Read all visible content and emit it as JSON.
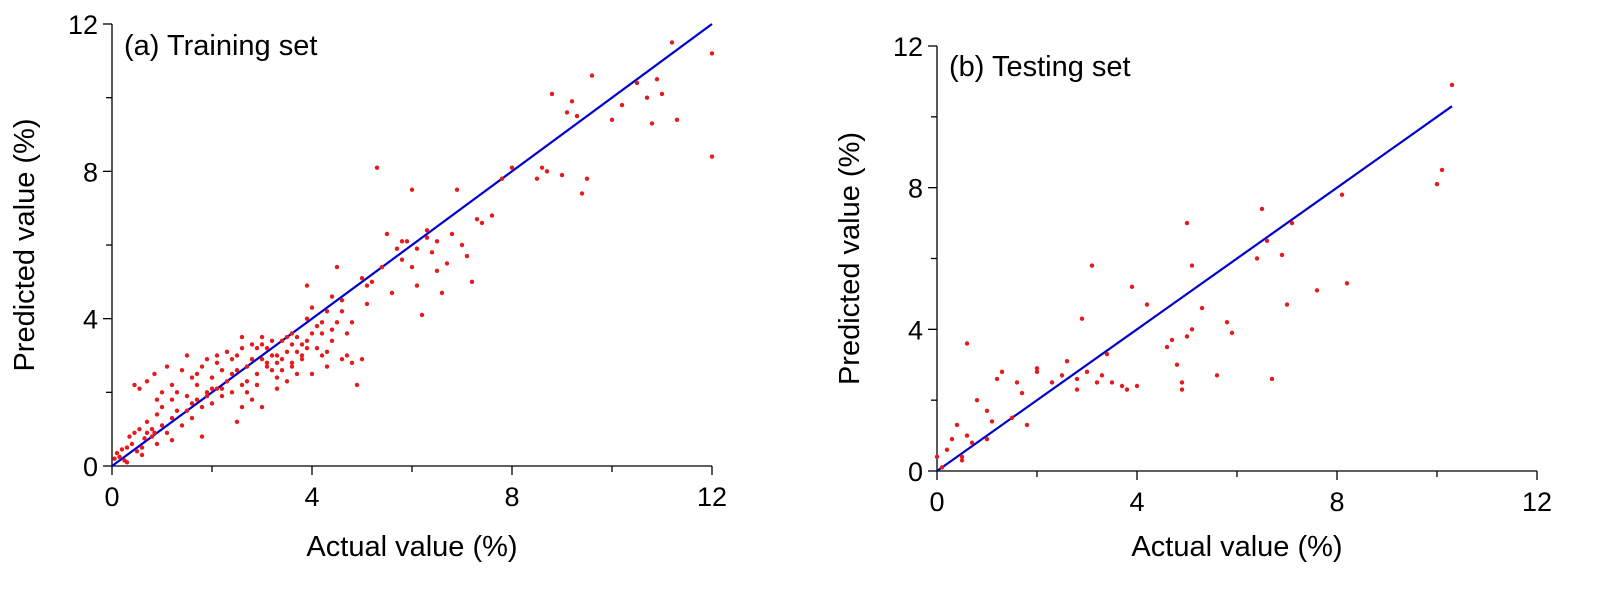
{
  "chart_data": [
    {
      "type": "scatter",
      "title": "(a) Training set",
      "xlabel": "Actual value (%)",
      "ylabel": "Predicted value (%)",
      "xlim": [
        0,
        12
      ],
      "ylim": [
        0,
        12
      ],
      "xticks": [
        "0",
        "4",
        "8",
        "12"
      ],
      "yticks": [
        "0",
        "4",
        "8",
        "12"
      ],
      "marker_color": "#e41a1c",
      "line_color": "#0000cc",
      "fit_line": {
        "x": [
          0,
          12
        ],
        "y": [
          0,
          12
        ]
      },
      "points": [
        [
          0.05,
          0.2
        ],
        [
          0.1,
          0.35
        ],
        [
          0.15,
          0.25
        ],
        [
          0.2,
          0.45
        ],
        [
          0.25,
          0.15
        ],
        [
          0.3,
          0.5
        ],
        [
          0.35,
          0.8
        ],
        [
          0.4,
          0.6
        ],
        [
          0.45,
          0.9
        ],
        [
          0.5,
          0.4
        ],
        [
          0.55,
          1.0
        ],
        [
          0.6,
          0.5
        ],
        [
          0.65,
          0.75
        ],
        [
          0.7,
          1.2
        ],
        [
          0.8,
          1.0
        ],
        [
          0.85,
          0.9
        ],
        [
          0.9,
          1.4
        ],
        [
          1.0,
          1.1
        ],
        [
          1.1,
          0.9
        ],
        [
          1.2,
          1.3
        ],
        [
          0.45,
          2.2
        ],
        [
          0.55,
          2.1
        ],
        [
          0.7,
          2.3
        ],
        [
          0.85,
          2.5
        ],
        [
          0.9,
          1.8
        ],
        [
          1.0,
          2.0
        ],
        [
          1.1,
          2.7
        ],
        [
          1.2,
          2.2
        ],
        [
          1.3,
          2.0
        ],
        [
          1.4,
          2.6
        ],
        [
          1.5,
          3.0
        ],
        [
          1.6,
          2.4
        ],
        [
          1.7,
          2.2
        ],
        [
          1.8,
          2.7
        ],
        [
          1.9,
          2.0
        ],
        [
          2.0,
          2.4
        ],
        [
          2.1,
          2.8
        ],
        [
          2.2,
          2.1
        ],
        [
          2.3,
          3.1
        ],
        [
          2.4,
          2.5
        ],
        [
          1.5,
          1.5
        ],
        [
          1.6,
          1.3
        ],
        [
          1.7,
          1.8
        ],
        [
          1.8,
          1.6
        ],
        [
          1.9,
          1.9
        ],
        [
          2.0,
          1.7
        ],
        [
          2.1,
          2.1
        ],
        [
          2.2,
          1.9
        ],
        [
          1.8,
          0.8
        ],
        [
          1.4,
          1.1
        ],
        [
          2.5,
          2.6
        ],
        [
          2.6,
          3.2
        ],
        [
          2.7,
          2.3
        ],
        [
          2.8,
          2.9
        ],
        [
          2.9,
          2.5
        ],
        [
          3.0,
          3.3
        ],
        [
          3.1,
          2.7
        ],
        [
          3.2,
          3.0
        ],
        [
          3.3,
          2.4
        ],
        [
          3.4,
          3.4
        ],
        [
          2.5,
          1.2
        ],
        [
          2.6,
          1.6
        ],
        [
          2.7,
          2.0
        ],
        [
          2.8,
          1.8
        ],
        [
          2.9,
          2.2
        ],
        [
          3.0,
          1.6
        ],
        [
          3.1,
          2.8
        ],
        [
          3.2,
          2.6
        ],
        [
          3.3,
          2.1
        ],
        [
          3.4,
          2.9
        ],
        [
          3.5,
          3.1
        ],
        [
          3.6,
          2.7
        ],
        [
          3.7,
          3.5
        ],
        [
          3.8,
          2.9
        ],
        [
          3.9,
          3.2
        ],
        [
          4.0,
          2.5
        ],
        [
          4.1,
          3.8
        ],
        [
          4.2,
          3.0
        ],
        [
          4.3,
          4.2
        ],
        [
          4.4,
          3.4
        ],
        [
          3.5,
          2.3
        ],
        [
          3.6,
          3.6
        ],
        [
          3.7,
          2.5
        ],
        [
          3.8,
          3.0
        ],
        [
          3.9,
          4.0
        ],
        [
          4.0,
          4.3
        ],
        [
          4.1,
          3.2
        ],
        [
          4.2,
          3.6
        ],
        [
          4.3,
          2.7
        ],
        [
          4.4,
          4.6
        ],
        [
          4.5,
          3.9
        ],
        [
          4.6,
          4.5
        ],
        [
          4.7,
          3.0
        ],
        [
          4.8,
          2.8
        ],
        [
          4.9,
          2.2
        ],
        [
          5.0,
          2.9
        ],
        [
          4.6,
          2.9
        ],
        [
          4.8,
          3.9
        ],
        [
          4.5,
          5.4
        ],
        [
          3.9,
          4.9
        ],
        [
          5.1,
          4.4
        ],
        [
          5.2,
          5.0
        ],
        [
          5.3,
          8.1
        ],
        [
          5.4,
          5.4
        ],
        [
          5.5,
          6.3
        ],
        [
          5.6,
          4.7
        ],
        [
          5.7,
          5.9
        ],
        [
          5.8,
          5.6
        ],
        [
          5.9,
          6.1
        ],
        [
          6.0,
          7.5
        ],
        [
          6.0,
          5.4
        ],
        [
          6.1,
          4.9
        ],
        [
          6.2,
          4.1
        ],
        [
          6.3,
          6.2
        ],
        [
          6.4,
          5.8
        ],
        [
          6.5,
          6.1
        ],
        [
          6.6,
          4.7
        ],
        [
          6.7,
          5.5
        ],
        [
          6.8,
          6.3
        ],
        [
          6.9,
          7.5
        ],
        [
          7.0,
          6.0
        ],
        [
          7.1,
          5.7
        ],
        [
          7.2,
          5.0
        ],
        [
          7.3,
          6.7
        ],
        [
          7.4,
          6.6
        ],
        [
          7.6,
          6.8
        ],
        [
          7.8,
          7.8
        ],
        [
          8.0,
          8.1
        ],
        [
          8.5,
          7.8
        ],
        [
          8.6,
          8.1
        ],
        [
          8.7,
          8.0
        ],
        [
          8.8,
          10.1
        ],
        [
          9.0,
          7.9
        ],
        [
          9.1,
          9.6
        ],
        [
          9.2,
          9.9
        ],
        [
          9.3,
          9.5
        ],
        [
          9.4,
          7.4
        ],
        [
          9.5,
          7.8
        ],
        [
          9.6,
          10.6
        ],
        [
          10.0,
          9.4
        ],
        [
          10.2,
          9.8
        ],
        [
          10.5,
          10.4
        ],
        [
          10.7,
          10.0
        ],
        [
          10.8,
          9.3
        ],
        [
          10.9,
          10.5
        ],
        [
          11.0,
          10.1
        ],
        [
          11.2,
          11.5
        ],
        [
          11.3,
          9.4
        ],
        [
          12.0,
          11.2
        ],
        [
          12.0,
          8.4
        ],
        [
          0.3,
          0.1
        ],
        [
          0.6,
          0.3
        ],
        [
          0.9,
          0.6
        ],
        [
          1.2,
          0.7
        ],
        [
          1.3,
          1.5
        ],
        [
          1.6,
          1.7
        ],
        [
          2.0,
          2.1
        ],
        [
          2.4,
          2.9
        ],
        [
          2.5,
          3.0
        ],
        [
          2.6,
          2.2
        ],
        [
          2.9,
          3.2
        ],
        [
          3.0,
          3.5
        ],
        [
          3.2,
          3.4
        ],
        [
          3.3,
          3.0
        ],
        [
          3.5,
          3.5
        ],
        [
          3.6,
          3.3
        ],
        [
          3.7,
          3.1
        ],
        [
          3.8,
          3.3
        ],
        [
          4.0,
          3.6
        ],
        [
          4.2,
          3.9
        ],
        [
          2.6,
          3.5
        ],
        [
          2.8,
          3.3
        ],
        [
          3.1,
          3.2
        ],
        [
          3.4,
          2.6
        ],
        [
          2.2,
          2.6
        ],
        [
          2.3,
          2.3
        ],
        [
          2.1,
          3.0
        ],
        [
          1.9,
          2.9
        ],
        [
          1.2,
          1.8
        ],
        [
          1.0,
          1.6
        ],
        [
          0.8,
          0.8
        ],
        [
          0.7,
          0.9
        ],
        [
          1.5,
          1.9
        ],
        [
          1.7,
          2.5
        ],
        [
          2.4,
          2.0
        ],
        [
          2.7,
          2.7
        ],
        [
          3.0,
          2.9
        ],
        [
          3.3,
          2.8
        ],
        [
          3.6,
          2.8
        ],
        [
          3.9,
          3.4
        ],
        [
          4.3,
          3.1
        ],
        [
          4.4,
          3.7
        ],
        [
          4.6,
          4.2
        ],
        [
          4.7,
          3.6
        ],
        [
          5.0,
          5.1
        ],
        [
          5.1,
          4.9
        ],
        [
          5.8,
          6.1
        ],
        [
          6.1,
          5.9
        ],
        [
          6.3,
          6.4
        ],
        [
          6.5,
          5.3
        ]
      ]
    },
    {
      "type": "scatter",
      "title": "(b) Testing set",
      "xlabel": "Actual value (%)",
      "ylabel": "Predicted value (%)",
      "xlim": [
        0,
        12
      ],
      "ylim": [
        0,
        12
      ],
      "xticks": [
        "0",
        "4",
        "8",
        "12"
      ],
      "yticks": [
        "0",
        "4",
        "8",
        "12"
      ],
      "marker_color": "#e41a1c",
      "line_color": "#0000cc",
      "fit_line": {
        "x": [
          0,
          10.3
        ],
        "y": [
          0,
          10.3
        ]
      },
      "points": [
        [
          0.0,
          0.4
        ],
        [
          0.1,
          0.1
        ],
        [
          0.2,
          0.6
        ],
        [
          0.3,
          0.9
        ],
        [
          0.4,
          1.3
        ],
        [
          0.5,
          0.4
        ],
        [
          0.6,
          1.0
        ],
        [
          0.6,
          3.6
        ],
        [
          0.7,
          0.8
        ],
        [
          0.8,
          2.0
        ],
        [
          1.0,
          0.9
        ],
        [
          1.0,
          1.7
        ],
        [
          1.2,
          2.6
        ],
        [
          1.3,
          2.8
        ],
        [
          1.5,
          1.5
        ],
        [
          1.6,
          2.5
        ],
        [
          1.7,
          2.2
        ],
        [
          1.8,
          1.3
        ],
        [
          2.0,
          2.8
        ],
        [
          2.0,
          2.9
        ],
        [
          2.3,
          2.5
        ],
        [
          2.5,
          2.7
        ],
        [
          2.6,
          3.1
        ],
        [
          2.8,
          2.3
        ],
        [
          2.8,
          2.6
        ],
        [
          2.9,
          4.3
        ],
        [
          3.0,
          2.8
        ],
        [
          3.1,
          5.8
        ],
        [
          3.2,
          2.5
        ],
        [
          3.3,
          2.7
        ],
        [
          3.4,
          3.3
        ],
        [
          3.5,
          2.5
        ],
        [
          3.7,
          2.4
        ],
        [
          3.8,
          2.3
        ],
        [
          3.9,
          5.2
        ],
        [
          4.0,
          2.4
        ],
        [
          4.2,
          4.7
        ],
        [
          4.6,
          3.5
        ],
        [
          4.7,
          3.7
        ],
        [
          4.8,
          3.0
        ],
        [
          4.9,
          2.5
        ],
        [
          4.9,
          2.3
        ],
        [
          5.0,
          7.0
        ],
        [
          5.0,
          3.8
        ],
        [
          5.1,
          5.8
        ],
        [
          5.1,
          4.0
        ],
        [
          5.3,
          4.6
        ],
        [
          5.6,
          2.7
        ],
        [
          5.8,
          4.2
        ],
        [
          5.9,
          3.9
        ],
        [
          6.4,
          6.0
        ],
        [
          6.5,
          7.4
        ],
        [
          6.6,
          6.5
        ],
        [
          6.7,
          2.6
        ],
        [
          6.9,
          6.1
        ],
        [
          7.0,
          4.7
        ],
        [
          7.1,
          7.0
        ],
        [
          7.6,
          5.1
        ],
        [
          8.1,
          7.8
        ],
        [
          8.2,
          5.3
        ],
        [
          10.0,
          8.1
        ],
        [
          10.1,
          8.5
        ],
        [
          10.3,
          10.9
        ],
        [
          0.5,
          0.3
        ],
        [
          1.1,
          1.4
        ]
      ]
    }
  ]
}
